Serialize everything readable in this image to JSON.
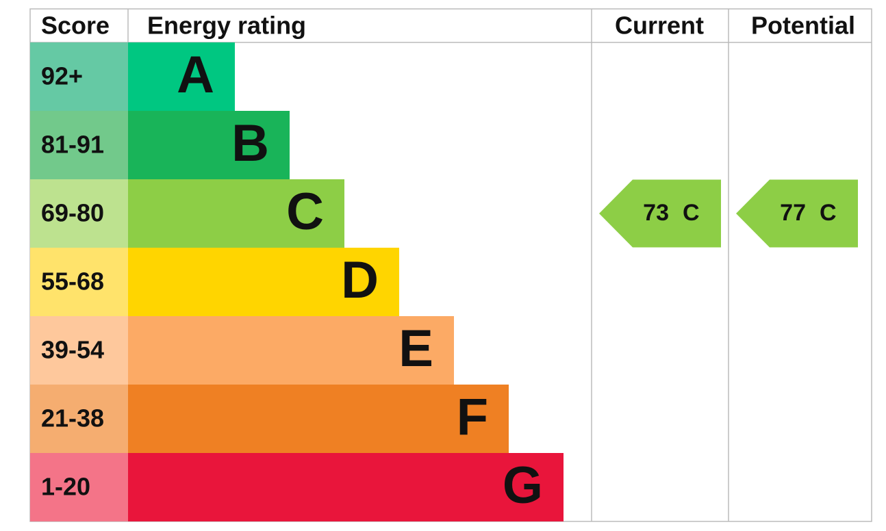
{
  "header": {
    "score": "Score",
    "rating": "Energy rating",
    "current": "Current",
    "potential": "Potential"
  },
  "bands": [
    {
      "score": "92+",
      "letter": "A",
      "color": "#00c781",
      "score_color": "#65c9a4"
    },
    {
      "score": "81-91",
      "letter": "B",
      "color": "#19b459",
      "score_color": "#72c98b"
    },
    {
      "score": "69-80",
      "letter": "C",
      "color": "#8dce46",
      "score_color": "#bde28f"
    },
    {
      "score": "55-68",
      "letter": "D",
      "color": "#ffd500",
      "score_color": "#ffe36b"
    },
    {
      "score": "39-54",
      "letter": "E",
      "color": "#fcaa65",
      "score_color": "#fec89c"
    },
    {
      "score": "21-38",
      "letter": "F",
      "color": "#ef8023",
      "score_color": "#f5ad70"
    },
    {
      "score": "1-20",
      "letter": "G",
      "color": "#e9153b",
      "score_color": "#f47488"
    }
  ],
  "current": {
    "value": 73,
    "rating": "C"
  },
  "potential": {
    "value": 77,
    "rating": "C"
  }
}
